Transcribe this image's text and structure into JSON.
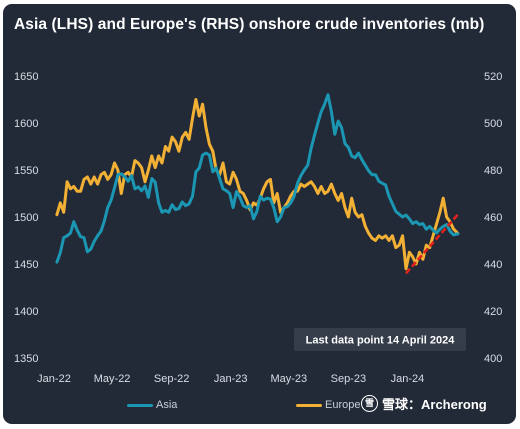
{
  "title": "Asia (LHS) and Europe's (RHS) onshore crude inventories (mb)",
  "annotation": "Last data point 14 April 2024",
  "watermark": {
    "logo_glyph": "雪",
    "text": "雪球：Archerong"
  },
  "colors": {
    "background": "#222a38",
    "asia": "#1b97b3",
    "europe": "#f2b134",
    "trend": "#e0221b",
    "note_box": "#353d4b"
  },
  "chart_data": {
    "type": "line",
    "title": "Asia (LHS) and Europe's (RHS) onshore crude inventories (mb)",
    "xlabel": "",
    "ylabel": "",
    "x_tick_labels": [
      "Jan-22",
      "May-22",
      "Sep-22",
      "Jan-23",
      "May-23",
      "Sep-23",
      "Jan-24"
    ],
    "y_left": {
      "lim": [
        1350,
        1650
      ],
      "ticks": [
        1350,
        1400,
        1450,
        1500,
        1550,
        1600,
        1650
      ]
    },
    "y_right": {
      "lim": [
        400,
        520
      ],
      "ticks": [
        400,
        420,
        440,
        460,
        480,
        500,
        520
      ]
    },
    "grid": false,
    "legend_position": "bottom",
    "series": [
      {
        "name": "Asia",
        "axis": "left",
        "color": "#1b97b3",
        "points": [
          [
            "2022-01-07",
            1452
          ],
          [
            "2022-01-14",
            1462
          ],
          [
            "2022-01-21",
            1478
          ],
          [
            "2022-01-28",
            1480
          ],
          [
            "2022-02-04",
            1483
          ],
          [
            "2022-02-11",
            1495
          ],
          [
            "2022-02-18",
            1486
          ],
          [
            "2022-02-25",
            1479
          ],
          [
            "2022-03-04",
            1478
          ],
          [
            "2022-03-11",
            1463
          ],
          [
            "2022-03-18",
            1466
          ],
          [
            "2022-03-25",
            1474
          ],
          [
            "2022-04-01",
            1480
          ],
          [
            "2022-04-08",
            1485
          ],
          [
            "2022-04-15",
            1496
          ],
          [
            "2022-04-22",
            1510
          ],
          [
            "2022-04-29",
            1518
          ],
          [
            "2022-05-06",
            1531
          ],
          [
            "2022-05-13",
            1545
          ],
          [
            "2022-05-20",
            1546
          ],
          [
            "2022-05-27",
            1543
          ],
          [
            "2022-06-03",
            1538
          ],
          [
            "2022-06-10",
            1544
          ],
          [
            "2022-06-17",
            1530
          ],
          [
            "2022-06-24",
            1532
          ],
          [
            "2022-07-01",
            1528
          ],
          [
            "2022-07-08",
            1533
          ],
          [
            "2022-07-15",
            1521
          ],
          [
            "2022-07-22",
            1541
          ],
          [
            "2022-07-29",
            1537
          ],
          [
            "2022-08-05",
            1515
          ],
          [
            "2022-08-12",
            1505
          ],
          [
            "2022-08-19",
            1507
          ],
          [
            "2022-08-26",
            1505
          ],
          [
            "2022-09-02",
            1513
          ],
          [
            "2022-09-09",
            1508
          ],
          [
            "2022-09-16",
            1509
          ],
          [
            "2022-09-23",
            1516
          ],
          [
            "2022-09-30",
            1512
          ],
          [
            "2022-10-07",
            1514
          ],
          [
            "2022-10-14",
            1522
          ],
          [
            "2022-10-21",
            1548
          ],
          [
            "2022-10-28",
            1552
          ],
          [
            "2022-11-04",
            1566
          ],
          [
            "2022-11-11",
            1568
          ],
          [
            "2022-11-18",
            1566
          ],
          [
            "2022-11-25",
            1548
          ],
          [
            "2022-12-02",
            1552
          ],
          [
            "2022-12-09",
            1541
          ],
          [
            "2022-12-16",
            1530
          ],
          [
            "2022-12-23",
            1528
          ],
          [
            "2022-12-30",
            1525
          ],
          [
            "2023-01-06",
            1510
          ],
          [
            "2023-01-13",
            1527
          ],
          [
            "2023-01-20",
            1521
          ],
          [
            "2023-01-27",
            1512
          ],
          [
            "2023-02-03",
            1510
          ],
          [
            "2023-02-10",
            1512
          ],
          [
            "2023-02-17",
            1498
          ],
          [
            "2023-02-24",
            1506
          ],
          [
            "2023-03-03",
            1522
          ],
          [
            "2023-03-10",
            1518
          ],
          [
            "2023-03-17",
            1520
          ],
          [
            "2023-03-24",
            1519
          ],
          [
            "2023-03-31",
            1510
          ],
          [
            "2023-04-07",
            1495
          ],
          [
            "2023-04-14",
            1500
          ],
          [
            "2023-04-21",
            1510
          ],
          [
            "2023-04-28",
            1511
          ],
          [
            "2023-05-05",
            1515
          ],
          [
            "2023-05-12",
            1522
          ],
          [
            "2023-05-19",
            1536
          ],
          [
            "2023-05-26",
            1544
          ],
          [
            "2023-06-02",
            1550
          ],
          [
            "2023-06-09",
            1555
          ],
          [
            "2023-06-16",
            1573
          ],
          [
            "2023-06-23",
            1587
          ],
          [
            "2023-06-30",
            1600
          ],
          [
            "2023-07-07",
            1612
          ],
          [
            "2023-07-14",
            1620
          ],
          [
            "2023-07-21",
            1630
          ],
          [
            "2023-07-28",
            1612
          ],
          [
            "2023-08-04",
            1588
          ],
          [
            "2023-08-11",
            1602
          ],
          [
            "2023-08-18",
            1595
          ],
          [
            "2023-08-25",
            1578
          ],
          [
            "2023-09-01",
            1574
          ],
          [
            "2023-09-08",
            1565
          ],
          [
            "2023-09-15",
            1563
          ],
          [
            "2023-09-22",
            1568
          ],
          [
            "2023-09-29",
            1561
          ],
          [
            "2023-10-06",
            1555
          ],
          [
            "2023-10-13",
            1549
          ],
          [
            "2023-10-20",
            1545
          ],
          [
            "2023-10-27",
            1545
          ],
          [
            "2023-11-03",
            1538
          ],
          [
            "2023-11-10",
            1536
          ],
          [
            "2023-11-17",
            1534
          ],
          [
            "2023-11-24",
            1522
          ],
          [
            "2023-12-01",
            1514
          ],
          [
            "2023-12-08",
            1506
          ],
          [
            "2023-12-15",
            1503
          ],
          [
            "2023-12-22",
            1500
          ],
          [
            "2023-12-29",
            1502
          ],
          [
            "2024-01-05",
            1498
          ],
          [
            "2024-01-12",
            1493
          ],
          [
            "2024-01-19",
            1495
          ],
          [
            "2024-01-26",
            1492
          ],
          [
            "2024-02-02",
            1493
          ],
          [
            "2024-02-09",
            1487
          ],
          [
            "2024-02-16",
            1490
          ],
          [
            "2024-02-23",
            1486
          ],
          [
            "2024-03-01",
            1483
          ],
          [
            "2024-03-08",
            1487
          ],
          [
            "2024-03-15",
            1490
          ],
          [
            "2024-03-22",
            1492
          ],
          [
            "2024-03-29",
            1485
          ],
          [
            "2024-04-05",
            1481
          ],
          [
            "2024-04-14",
            1482
          ]
        ]
      },
      {
        "name": "Europe",
        "axis": "right",
        "color": "#f2b134",
        "points": [
          [
            "2022-01-07",
            461
          ],
          [
            "2022-01-14",
            466
          ],
          [
            "2022-01-21",
            462
          ],
          [
            "2022-01-28",
            475
          ],
          [
            "2022-02-04",
            472
          ],
          [
            "2022-02-11",
            473
          ],
          [
            "2022-02-18",
            471
          ],
          [
            "2022-02-25",
            471
          ],
          [
            "2022-03-04",
            476
          ],
          [
            "2022-03-11",
            477
          ],
          [
            "2022-03-18",
            474
          ],
          [
            "2022-03-25",
            477
          ],
          [
            "2022-04-01",
            474
          ],
          [
            "2022-04-08",
            478
          ],
          [
            "2022-04-15",
            479
          ],
          [
            "2022-04-22",
            476
          ],
          [
            "2022-04-29",
            478
          ],
          [
            "2022-05-06",
            483
          ],
          [
            "2022-05-13",
            480
          ],
          [
            "2022-05-20",
            470
          ],
          [
            "2022-05-27",
            478
          ],
          [
            "2022-06-03",
            479
          ],
          [
            "2022-06-10",
            477
          ],
          [
            "2022-06-17",
            484
          ],
          [
            "2022-06-24",
            483
          ],
          [
            "2022-07-01",
            481
          ],
          [
            "2022-07-08",
            475
          ],
          [
            "2022-07-15",
            480
          ],
          [
            "2022-07-22",
            486
          ],
          [
            "2022-07-29",
            481
          ],
          [
            "2022-08-05",
            486
          ],
          [
            "2022-08-12",
            483
          ],
          [
            "2022-08-19",
            490
          ],
          [
            "2022-08-26",
            488
          ],
          [
            "2022-09-02",
            494
          ],
          [
            "2022-09-09",
            492
          ],
          [
            "2022-09-16",
            488
          ],
          [
            "2022-09-23",
            494
          ],
          [
            "2022-09-30",
            496
          ],
          [
            "2022-10-07",
            493
          ],
          [
            "2022-10-14",
            502
          ],
          [
            "2022-10-21",
            510
          ],
          [
            "2022-10-28",
            503
          ],
          [
            "2022-11-04",
            508
          ],
          [
            "2022-11-11",
            498
          ],
          [
            "2022-11-18",
            491
          ],
          [
            "2022-11-25",
            488
          ],
          [
            "2022-12-02",
            480
          ],
          [
            "2022-12-09",
            478
          ],
          [
            "2022-12-16",
            483
          ],
          [
            "2022-12-23",
            475
          ],
          [
            "2022-12-30",
            474
          ],
          [
            "2023-01-06",
            479
          ],
          [
            "2023-01-13",
            476
          ],
          [
            "2023-01-20",
            471
          ],
          [
            "2023-01-27",
            470
          ],
          [
            "2023-02-03",
            467
          ],
          [
            "2023-02-10",
            463
          ],
          [
            "2023-02-17",
            466
          ],
          [
            "2023-02-24",
            465
          ],
          [
            "2023-03-03",
            468
          ],
          [
            "2023-03-10",
            472
          ],
          [
            "2023-03-17",
            475
          ],
          [
            "2023-03-24",
            476
          ],
          [
            "2023-03-31",
            466
          ],
          [
            "2023-04-07",
            470
          ],
          [
            "2023-04-14",
            462
          ],
          [
            "2023-04-21",
            464
          ],
          [
            "2023-04-28",
            466
          ],
          [
            "2023-05-05",
            469
          ],
          [
            "2023-05-12",
            471
          ],
          [
            "2023-05-19",
            471
          ],
          [
            "2023-05-26",
            474
          ],
          [
            "2023-06-02",
            473
          ],
          [
            "2023-06-09",
            474
          ],
          [
            "2023-06-16",
            475
          ],
          [
            "2023-06-23",
            473
          ],
          [
            "2023-06-30",
            470
          ],
          [
            "2023-07-07",
            473
          ],
          [
            "2023-07-14",
            470
          ],
          [
            "2023-07-21",
            471
          ],
          [
            "2023-07-28",
            474
          ],
          [
            "2023-08-04",
            470
          ],
          [
            "2023-08-11",
            467
          ],
          [
            "2023-08-18",
            470
          ],
          [
            "2023-08-25",
            464
          ],
          [
            "2023-09-01",
            460
          ],
          [
            "2023-09-08",
            468
          ],
          [
            "2023-09-15",
            462
          ],
          [
            "2023-09-22",
            460
          ],
          [
            "2023-09-29",
            461
          ],
          [
            "2023-10-06",
            456
          ],
          [
            "2023-10-13",
            453
          ],
          [
            "2023-10-20",
            451
          ],
          [
            "2023-10-27",
            450
          ],
          [
            "2023-11-03",
            452
          ],
          [
            "2023-11-10",
            451
          ],
          [
            "2023-11-17",
            452
          ],
          [
            "2023-11-24",
            450
          ],
          [
            "2023-12-01",
            452
          ],
          [
            "2023-12-08",
            447
          ],
          [
            "2023-12-15",
            448
          ],
          [
            "2023-12-22",
            452
          ],
          [
            "2023-12-29",
            438
          ],
          [
            "2024-01-05",
            445
          ],
          [
            "2024-01-12",
            443
          ],
          [
            "2024-01-19",
            440
          ],
          [
            "2024-01-26",
            445
          ],
          [
            "2024-02-02",
            442
          ],
          [
            "2024-02-09",
            448
          ],
          [
            "2024-02-16",
            447
          ],
          [
            "2024-02-23",
            452
          ],
          [
            "2024-03-01",
            457
          ],
          [
            "2024-03-08",
            462
          ],
          [
            "2024-03-15",
            468
          ],
          [
            "2024-03-22",
            460
          ],
          [
            "2024-03-29",
            458
          ],
          [
            "2024-04-05",
            455
          ],
          [
            "2024-04-14",
            453
          ]
        ]
      }
    ],
    "trendline": {
      "axis": "right",
      "style": "dashed",
      "color": "#e0221b",
      "from": [
        "2023-12-29",
        436
      ],
      "to": [
        "2024-04-14",
        461
      ]
    }
  }
}
